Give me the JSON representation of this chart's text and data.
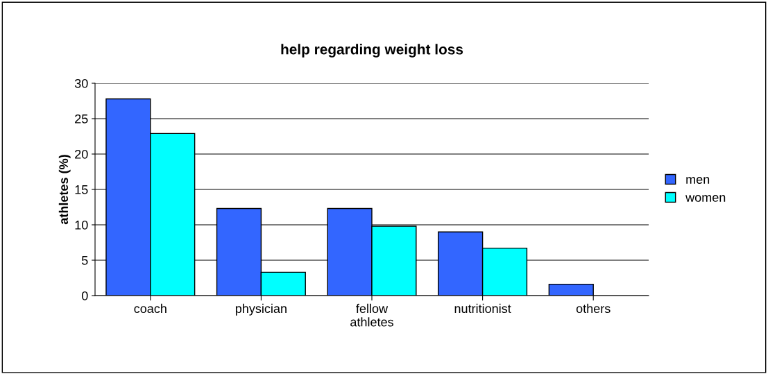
{
  "chart_data": {
    "type": "bar",
    "title": "help regarding weight loss",
    "ylabel": "athletes (%)",
    "categories": [
      "coach",
      "physician",
      "fellow\nathletes",
      "nutritionist",
      "others"
    ],
    "series": [
      {
        "name": "men",
        "color": "#3366ff",
        "values": [
          27.8,
          12.3,
          12.3,
          9.0,
          1.6
        ]
      },
      {
        "name": "women",
        "color": "#00ffff",
        "values": [
          22.9,
          3.3,
          9.8,
          6.7,
          null
        ]
      }
    ],
    "ylim": [
      0,
      30
    ],
    "yticks": [
      0,
      5,
      10,
      15,
      20,
      25,
      30
    ],
    "grid": "y",
    "legend": "right"
  }
}
